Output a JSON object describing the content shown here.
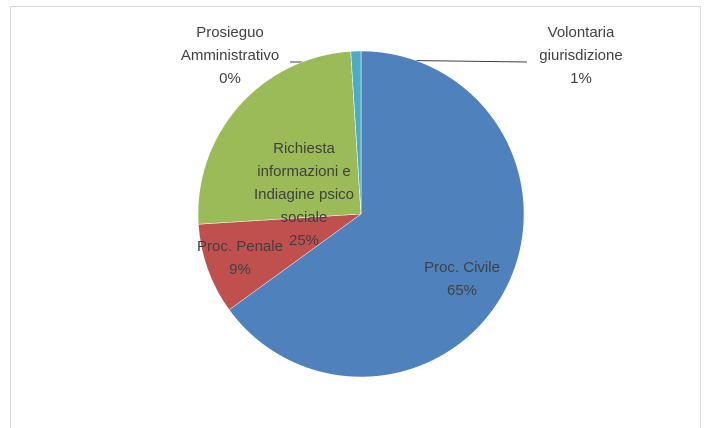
{
  "chart_data": {
    "type": "pie",
    "categories": [
      "Proc. Civile",
      "Proc. Penale",
      "Richiesta informazioni e Indiagine psico sociale",
      "Prosieguo Amministrativo",
      "Volontaria giurisdizione"
    ],
    "values": [
      65,
      9,
      25,
      0,
      1
    ],
    "value_labels": [
      "65%",
      "9%",
      "25%",
      "0%",
      "1%"
    ],
    "colors": [
      "#4f81bd",
      "#c0504d",
      "#9bbb59",
      "#8064a2",
      "#4bacc6"
    ]
  }
}
